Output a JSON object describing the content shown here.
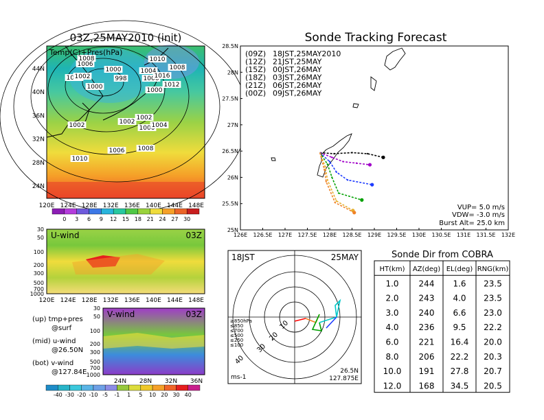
{
  "left_map": {
    "title": "03Z,25MAY2010 (init)",
    "label": "Temp(C)+Pres(hPa)",
    "lon_ticks": [
      "120E",
      "124E",
      "128E",
      "132E",
      "136E",
      "140E",
      "144E",
      "148E"
    ],
    "lat_ticks": [
      "44N",
      "40N",
      "36N",
      "32N",
      "28N",
      "24N"
    ],
    "isobar_labels": [
      "1008",
      "1006",
      "1004",
      "1002",
      "1000",
      "1000",
      "998",
      "1004",
      "1006",
      "1000",
      "1010",
      "1008",
      "1016",
      "1012",
      "1002",
      "1002",
      "1002",
      "1000",
      "1004",
      "1006",
      "1008",
      "1010"
    ],
    "colorbar": [
      "0",
      "3",
      "6",
      "9",
      "12",
      "15",
      "18",
      "21",
      "24",
      "27",
      "30"
    ]
  },
  "u_panel": {
    "label": "U-wind",
    "time": "03Z",
    "y_ticks": [
      "30",
      "50",
      "100",
      "200",
      "300",
      "500",
      "700",
      "1000"
    ],
    "x_ticks": [
      "120E",
      "124E",
      "128E",
      "132E",
      "136E",
      "140E",
      "144E",
      "148E"
    ]
  },
  "v_panel": {
    "label": "V-wind",
    "time": "03Z",
    "y_ticks": [
      "30",
      "50",
      "100",
      "200",
      "300",
      "500",
      "700",
      "1000"
    ],
    "x_ticks": [
      "24N",
      "28N",
      "32N",
      "36N"
    ],
    "colorbar": [
      "-40",
      "-30",
      "-20",
      "-10",
      "-5",
      "-1",
      "1",
      "5",
      "10",
      "20",
      "30",
      "40"
    ]
  },
  "notes": {
    "line1": "(up) tmp+pres",
    "line2": "@surf",
    "line3": "(mid) u-wind",
    "line4": "@26.50N",
    "line5": "(bot) v-wind",
    "line6": "@127.84E"
  },
  "colors": {
    "c00": "#000000",
    "c12": "#a000c8",
    "c15": "#1e3cff",
    "c18": "#00a000",
    "c21": "#e6af2d",
    "c00b": "#f08228"
  },
  "track": {
    "title": "Sonde Tracking Forecast",
    "x_ticks": [
      "126E",
      "126.5E",
      "127E",
      "127.5E",
      "128E",
      "128.5E",
      "129E",
      "129.5E",
      "130E",
      "130.5E",
      "131E",
      "131.5E",
      "132E"
    ],
    "y_ticks": [
      "28.5N",
      "28N",
      "27.5N",
      "27N",
      "26.5N",
      "26N",
      "25.5N",
      "25N"
    ],
    "legend": [
      {
        "key": "(09Z)",
        "text": "18JST,25MAY2010",
        "color": "#000000"
      },
      {
        "key": "(12Z)",
        "text": "21JST,25MAY",
        "color": "#a000c8"
      },
      {
        "key": "(15Z)",
        "text": "00JST,26MAY",
        "color": "#1e3cff"
      },
      {
        "key": "(18Z)",
        "text": "03JST,26MAY",
        "color": "#00a000"
      },
      {
        "key": "(21Z)",
        "text": "06JST,26MAY",
        "color": "#e6af2d"
      },
      {
        "key": "(00Z)",
        "text": "09JST,26MAY",
        "color": "#f08228"
      }
    ],
    "params": {
      "vup": "VUP= 5.0 m/s",
      "vdw": "VDW= -3.0 m/s",
      "burst": "Burst Alt= 25.0 km"
    }
  },
  "chart_data": {
    "type": "line",
    "xlim": [
      126,
      132
    ],
    "ylim": [
      25,
      28.5
    ],
    "series": [
      {
        "name": "(09Z) 18JST,25MAY2010",
        "color": "#000000",
        "points": [
          [
            127.78,
            26.47
          ],
          [
            128.1,
            26.45
          ],
          [
            128.5,
            26.47
          ],
          [
            128.85,
            26.45
          ],
          [
            129.2,
            26.38
          ]
        ]
      },
      {
        "name": "(12Z) 21JST,25MAY",
        "color": "#a000c8",
        "points": [
          [
            127.78,
            26.47
          ],
          [
            128.05,
            26.38
          ],
          [
            128.3,
            26.3
          ],
          [
            128.6,
            26.27
          ],
          [
            128.9,
            26.24
          ]
        ]
      },
      {
        "name": "(15Z) 00JST,26MAY",
        "color": "#1e3cff",
        "points": [
          [
            127.78,
            26.47
          ],
          [
            128.0,
            26.3
          ],
          [
            128.15,
            26.1
          ],
          [
            128.4,
            25.95
          ],
          [
            128.95,
            25.86
          ]
        ]
      },
      {
        "name": "(18Z) 03JST,26MAY",
        "color": "#00a000",
        "points": [
          [
            127.78,
            26.47
          ],
          [
            127.95,
            26.25
          ],
          [
            128.05,
            26.0
          ],
          [
            128.2,
            25.7
          ],
          [
            128.72,
            25.57
          ]
        ]
      },
      {
        "name": "(21Z) 06JST,26MAY",
        "color": "#e6af2d",
        "points": [
          [
            127.78,
            26.47
          ],
          [
            127.9,
            26.2
          ],
          [
            127.95,
            25.95
          ],
          [
            128.15,
            25.55
          ],
          [
            128.52,
            25.37
          ]
        ]
      },
      {
        "name": "(00Z) 09JST,26MAY",
        "color": "#f08228",
        "points": [
          [
            127.78,
            26.47
          ],
          [
            127.88,
            26.15
          ],
          [
            127.92,
            25.92
          ],
          [
            128.12,
            25.52
          ],
          [
            128.55,
            25.33
          ]
        ]
      }
    ]
  },
  "polar": {
    "time": "18JST",
    "date": "25MAY",
    "ring_labels": [
      "10",
      "20",
      "30",
      "40"
    ],
    "alt_labels": [
      {
        "text": "≥850hPa",
        "color": "#ff0000"
      },
      {
        "text": "≤850",
        "color": "#f08228"
      },
      {
        "text": "≤700",
        "color": "#e6c800"
      },
      {
        "text": "≤500",
        "color": "#00a000"
      },
      {
        "text": "≤250",
        "color": "#00c8c8"
      },
      {
        "text": "≤100",
        "color": "#1e3cff"
      }
    ],
    "unit": "ms-1",
    "pos1": "26.5N",
    "pos2": "127.875E"
  },
  "cobra": {
    "title": "Sonde Dir from COBRA",
    "headers": [
      "HT(km)",
      "AZ(deg)",
      "EL(deg)",
      "RNG(km)"
    ],
    "rows": [
      [
        "1.0",
        "244",
        "1.6",
        "23.5"
      ],
      [
        "2.0",
        "243",
        "4.0",
        "23.5"
      ],
      [
        "3.0",
        "240",
        "6.6",
        "23.0"
      ],
      [
        "4.0",
        "236",
        "9.5",
        "22.2"
      ],
      [
        "6.0",
        "221",
        "16.4",
        "20.0"
      ],
      [
        "8.0",
        "206",
        "22.2",
        "20.3"
      ],
      [
        "10.0",
        "191",
        "27.8",
        "20.7"
      ],
      [
        "12.0",
        "168",
        "34.5",
        "20.5"
      ]
    ]
  }
}
